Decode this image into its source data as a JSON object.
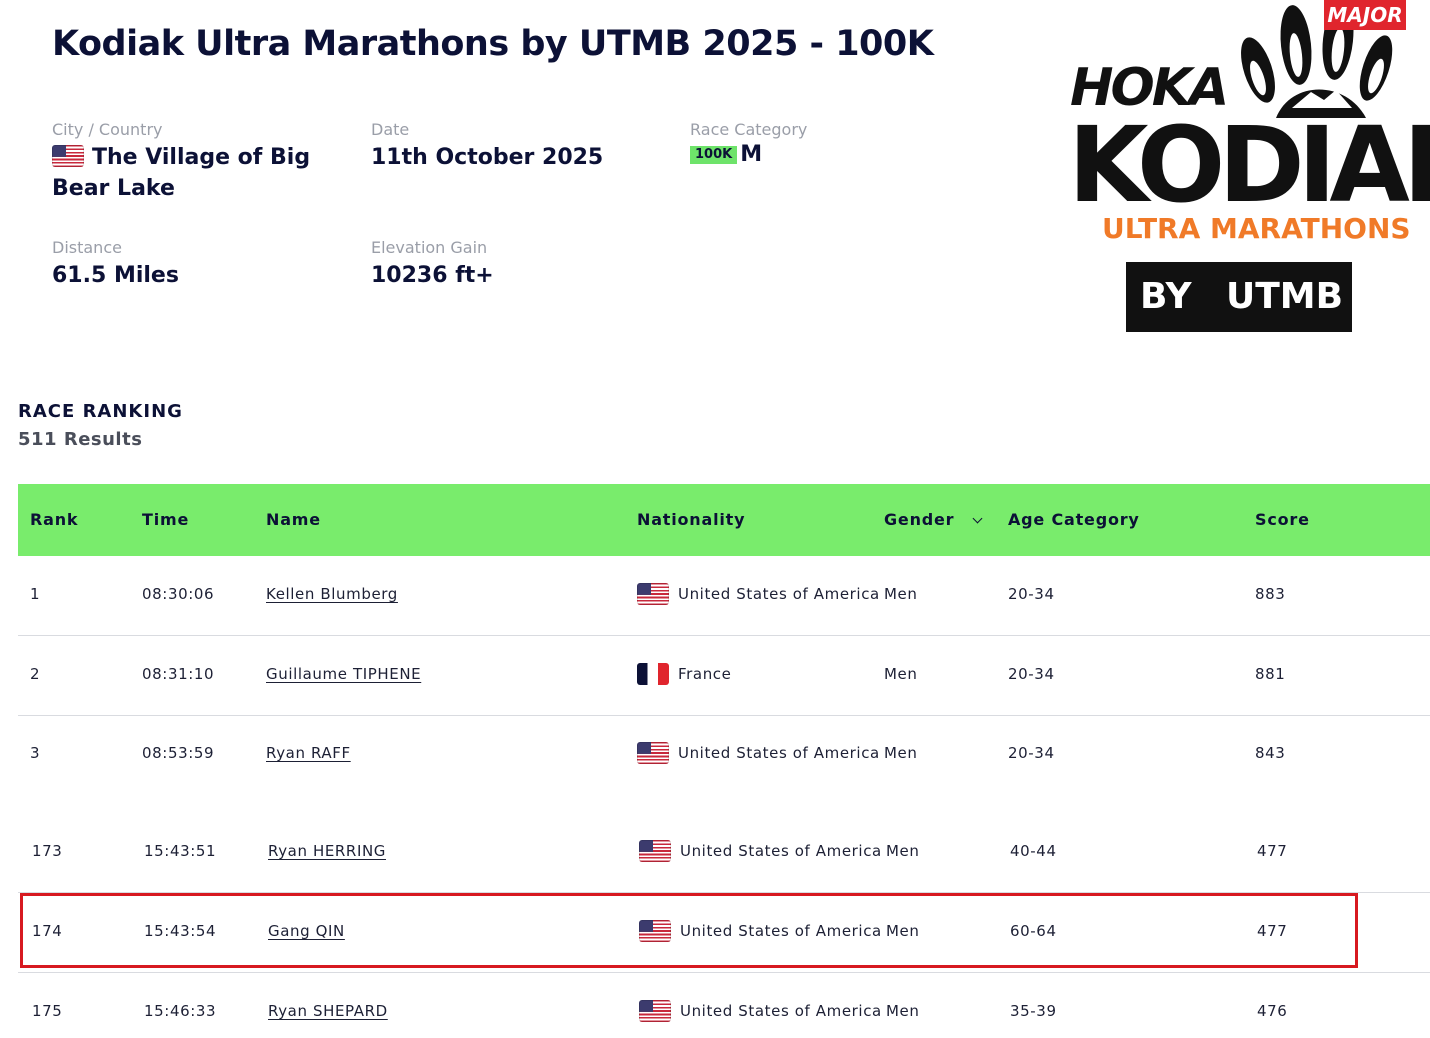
{
  "race": {
    "title": "Kodiak Ultra Marathons by UTMB 2025 - 100K",
    "city_label": "City / Country",
    "city_line1": "The Village of Big",
    "city_line2": "Bear Lake",
    "date_label": "Date",
    "date": "11th October 2025",
    "category_label": "Race Category",
    "category_badge": "100K",
    "category_letter": "M",
    "distance_label": "Distance",
    "distance": "61.5 Miles",
    "elevation_label": "Elevation Gain",
    "elevation": "10236 ft+"
  },
  "logo": {
    "major": "MAJOR",
    "hoka": "HOKA",
    "kodiak": "KODIAK",
    "ultra": "ULTRA MARATHONS",
    "by": "BY",
    "utmb": "UTMB"
  },
  "ranking": {
    "title": "RACE RANKING",
    "count": "511 Results",
    "headers": {
      "rank": "Rank",
      "time": "Time",
      "name": "Name",
      "nationality": "Nationality",
      "gender": "Gender",
      "age_category": "Age Category",
      "score": "Score"
    },
    "rows": [
      {
        "rank": "1",
        "time": "08:30:06",
        "name": "Kellen Blumberg",
        "nationality": "United States of America",
        "flag": "us-flag-icon",
        "gender": "Men",
        "age": "20-34",
        "score": "883"
      },
      {
        "rank": "2",
        "time": "08:31:10",
        "name": "Guillaume TIPHENE",
        "nationality": "France",
        "flag": "fr-flag-icon",
        "gender": "Men",
        "age": "20-34",
        "score": "881"
      },
      {
        "rank": "3",
        "time": "08:53:59",
        "name": "Ryan RAFF",
        "nationality": "United States of America",
        "flag": "us-flag-icon",
        "gender": "Men",
        "age": "20-34",
        "score": "843"
      },
      {
        "rank": "173",
        "time": "15:43:51",
        "name": "Ryan HERRING",
        "nationality": "United States of America",
        "flag": "us-flag-icon",
        "gender": "Men",
        "age": "40-44",
        "score": "477"
      },
      {
        "rank": "174",
        "time": "15:43:54",
        "name": "Gang QIN",
        "nationality": "United States of America",
        "flag": "us-flag-icon",
        "gender": "Men",
        "age": "60-64",
        "score": "477"
      },
      {
        "rank": "175",
        "time": "15:46:33",
        "name": "Ryan SHEPARD",
        "nationality": "United States of America",
        "flag": "us-flag-icon",
        "gender": "Men",
        "age": "35-39",
        "score": "476"
      }
    ]
  },
  "colors": {
    "header_green": "#79ec6c",
    "highlight_red": "#d71920",
    "navy": "#0c1136",
    "logo_orange": "#f07a28"
  }
}
